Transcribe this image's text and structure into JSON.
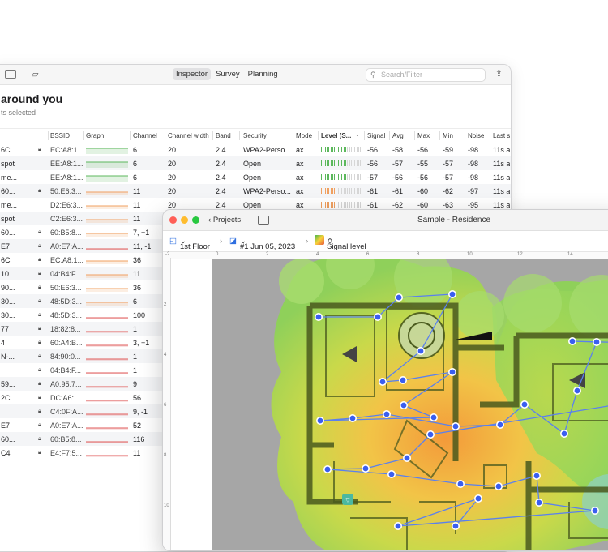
{
  "inspector": {
    "tabs": [
      "Inspector",
      "Survey",
      "Planning"
    ],
    "active_tab": "Inspector",
    "search_placeholder": "Search/Filter",
    "heading": "around you",
    "subheading": "ts selected",
    "columns": [
      "BSSID",
      "Graph",
      "Channel",
      "Channel width",
      "Band",
      "Security",
      "Mode",
      "Level (S...",
      "Signal",
      "Avg",
      "Max",
      "Min",
      "Noise",
      "Last s"
    ],
    "rows": [
      {
        "name": "6C",
        "locked": true,
        "bssid": "EC:A8:1...",
        "graph": "green",
        "channel": "6",
        "width": "20",
        "band": "2.4",
        "security": "WPA2-Perso...",
        "mode": "ax",
        "level": "green",
        "signal": "-56",
        "avg": "-58",
        "max": "-56",
        "min": "-59",
        "noise": "-98",
        "last": "11s a"
      },
      {
        "name": "spot",
        "locked": false,
        "bssid": "EE:A8:1...",
        "graph": "green",
        "channel": "6",
        "width": "20",
        "band": "2.4",
        "security": "Open",
        "mode": "ax",
        "level": "green",
        "signal": "-56",
        "avg": "-57",
        "max": "-55",
        "min": "-57",
        "noise": "-98",
        "last": "11s a"
      },
      {
        "name": "me...",
        "locked": false,
        "bssid": "EE:A8:1...",
        "graph": "green",
        "channel": "6",
        "width": "20",
        "band": "2.4",
        "security": "Open",
        "mode": "ax",
        "level": "green",
        "signal": "-57",
        "avg": "-56",
        "max": "-56",
        "min": "-57",
        "noise": "-98",
        "last": "11s a"
      },
      {
        "name": "60...",
        "locked": true,
        "bssid": "50:E6:3...",
        "graph": "orange",
        "channel": "11",
        "width": "20",
        "band": "2.4",
        "security": "WPA2-Perso...",
        "mode": "ax",
        "level": "orange",
        "signal": "-61",
        "avg": "-61",
        "max": "-60",
        "min": "-62",
        "noise": "-97",
        "last": "11s a"
      },
      {
        "name": "me...",
        "locked": false,
        "bssid": "D2:E6:3...",
        "graph": "orange",
        "channel": "11",
        "width": "20",
        "band": "2.4",
        "security": "Open",
        "mode": "ax",
        "level": "orange",
        "signal": "-61",
        "avg": "-62",
        "max": "-60",
        "min": "-63",
        "noise": "-95",
        "last": "11s a"
      },
      {
        "name": "spot",
        "locked": false,
        "bssid": "C2:E6:3...",
        "graph": "orange",
        "channel": "11"
      },
      {
        "name": "60...",
        "locked": true,
        "bssid": "60:B5:8...",
        "graph": "orange",
        "channel": "7, +1"
      },
      {
        "name": "E7",
        "locked": true,
        "bssid": "A0:E7:A...",
        "graph": "red",
        "channel": "11, -1"
      },
      {
        "name": "6C",
        "locked": true,
        "bssid": "EC:A8:1...",
        "graph": "orange",
        "channel": "36"
      },
      {
        "name": "10...",
        "locked": true,
        "bssid": "04:B4:F...",
        "graph": "orange",
        "channel": "11"
      },
      {
        "name": "90...",
        "locked": true,
        "bssid": "50:E6:3...",
        "graph": "orange",
        "channel": "36"
      },
      {
        "name": "30...",
        "locked": true,
        "bssid": "48:5D:3...",
        "graph": "orange",
        "channel": "6"
      },
      {
        "name": "30...",
        "locked": true,
        "bssid": "48:5D:3...",
        "graph": "red",
        "channel": "100"
      },
      {
        "name": "77",
        "locked": true,
        "bssid": "18:82:8...",
        "graph": "red",
        "channel": "1"
      },
      {
        "name": "4",
        "locked": true,
        "bssid": "60:A4:B...",
        "graph": "red",
        "channel": "3, +1"
      },
      {
        "name": "N-...",
        "locked": true,
        "bssid": "84:90:0...",
        "graph": "red",
        "channel": "1"
      },
      {
        "name": "",
        "locked": true,
        "bssid": "04:B4:F...",
        "graph": "red",
        "channel": "1"
      },
      {
        "name": "59...",
        "locked": true,
        "bssid": "A0:95:7...",
        "graph": "red",
        "channel": "9"
      },
      {
        "name": "2C",
        "locked": true,
        "bssid": "DC:A6:...",
        "graph": "red",
        "channel": "56"
      },
      {
        "name": "",
        "locked": true,
        "bssid": "C4:0F:A...",
        "graph": "red",
        "channel": "9, -1"
      },
      {
        "name": "E7",
        "locked": true,
        "bssid": "A0:E7:A...",
        "graph": "red",
        "channel": "52"
      },
      {
        "name": "60...",
        "locked": true,
        "bssid": "60:B5:8...",
        "graph": "red",
        "channel": "116"
      },
      {
        "name": "C4",
        "locked": true,
        "bssid": "E4:F7:5...",
        "graph": "red",
        "channel": "11"
      }
    ]
  },
  "survey": {
    "back_label": "Projects",
    "window_title": "Sample - Residence",
    "floor": "1st Floor",
    "survey_name": "#1 Jun 05, 2023",
    "visualization": "Signal level",
    "ruler_x": [
      "-2",
      "0",
      "2",
      "4",
      "6",
      "8",
      "10",
      "12",
      "14"
    ],
    "ruler_y": [
      "2",
      "4",
      "6",
      "8",
      "10"
    ]
  },
  "colors": {
    "green": "#5cb85c",
    "orange": "#f0a060",
    "red": "#e05a5a",
    "accent": "#2f6fe0",
    "point": "#3a5ef0"
  }
}
